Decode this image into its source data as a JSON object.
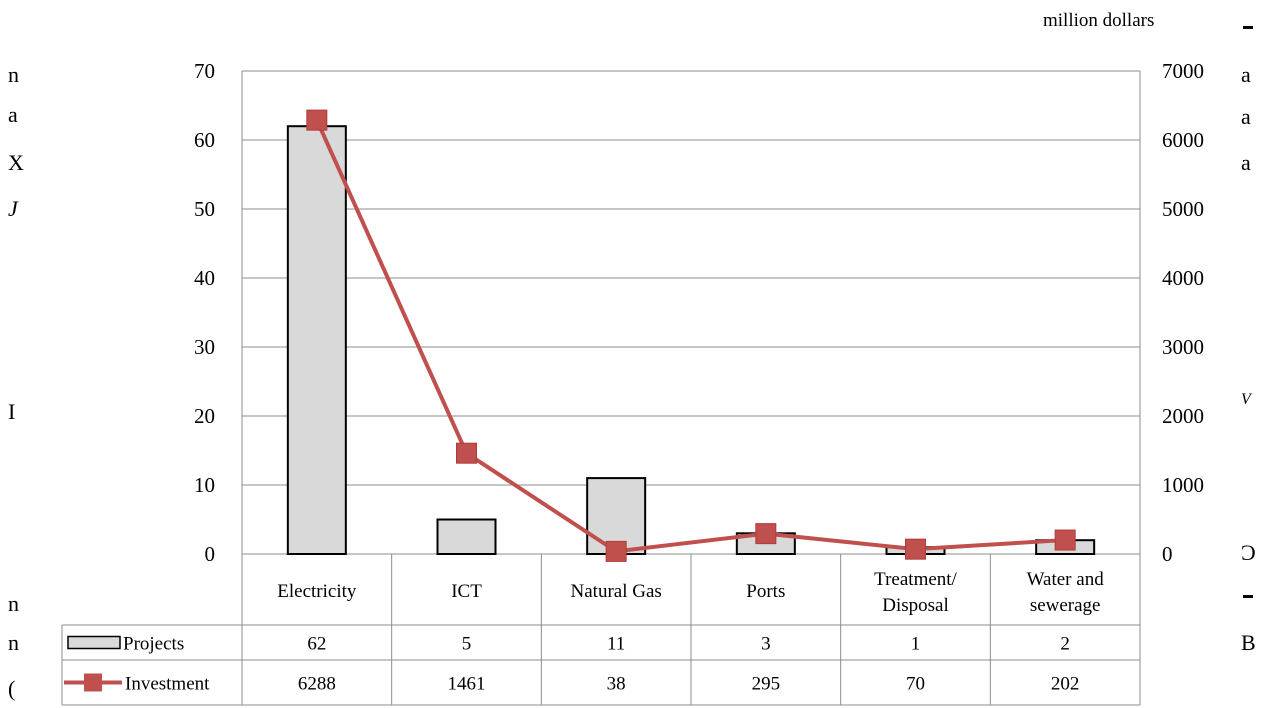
{
  "chart_data": {
    "type": "bar+line",
    "unit_label": "million dollars",
    "categories": [
      "Electricity",
      "ICT",
      "Natural Gas",
      "Ports",
      "Treatment/\nDisposal",
      "Water and\nsewerage"
    ],
    "series": [
      {
        "name": "Projects",
        "type": "bar",
        "axis": "left",
        "values": [
          62,
          5,
          11,
          3,
          1,
          2
        ],
        "color": "#d9d9d9"
      },
      {
        "name": "Investment",
        "type": "line",
        "axis": "right",
        "values": [
          6288,
          1461,
          38,
          295,
          70,
          202
        ],
        "color": "#c0504d"
      }
    ],
    "left_axis": {
      "ylim": [
        0,
        70
      ],
      "ticks": [
        "0",
        "10",
        "20",
        "30",
        "40",
        "50",
        "60",
        "70"
      ]
    },
    "right_axis": {
      "ylim": [
        0,
        7000
      ],
      "ticks": [
        "0",
        "1000",
        "2000",
        "3000",
        "4000",
        "5000",
        "6000",
        "7000"
      ]
    },
    "grid": true,
    "legend": "data-table"
  },
  "background_fragments": {
    "left": [
      "n",
      "a",
      "X",
      "J",
      "I",
      "n",
      "n",
      "("
    ],
    "right": [
      "a",
      "a",
      "a",
      "V",
      "Ɔ",
      "B"
    ]
  }
}
